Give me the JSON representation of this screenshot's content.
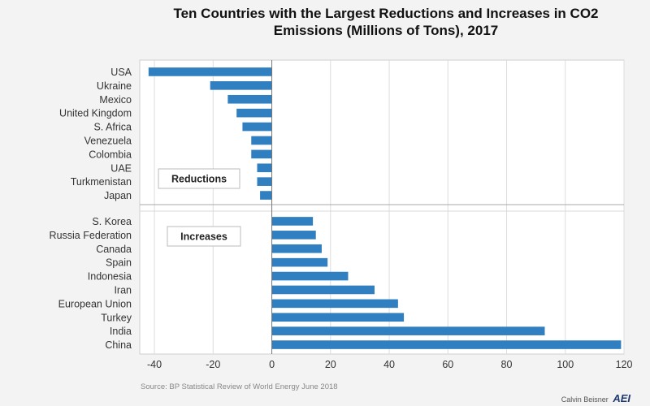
{
  "chart_data": {
    "type": "bar",
    "orientation": "horizontal",
    "title": "Ten Countries with the Largest Reductions and Increases in CO2 Emissions (Millions of Tons), 2017",
    "xlim": [
      -45,
      120
    ],
    "x_ticks": [
      -40,
      -20,
      0,
      20,
      40,
      60,
      80,
      100,
      120
    ],
    "grid": true,
    "bar_color": "#2f7fc1",
    "groups": [
      {
        "label": "Reductions",
        "categories": [
          "USA",
          "Ukraine",
          "Mexico",
          "United Kingdom",
          "S. Africa",
          "Venezuela",
          "Colombia",
          "UAE",
          "Turkmenistan",
          "Japan"
        ],
        "values": [
          -42,
          -21,
          -15,
          -12,
          -10,
          -7,
          -7,
          -5,
          -5,
          -4
        ]
      },
      {
        "label": "Increases",
        "categories": [
          "S. Korea",
          "Russia Federation",
          "Canada",
          "Spain",
          "Indonesia",
          "Iran",
          "European Union",
          "Turkey",
          "India",
          "China"
        ],
        "values": [
          14,
          15,
          17,
          19,
          26,
          35,
          43,
          45,
          93,
          119
        ]
      }
    ]
  },
  "source": "Source: BP Statistical Review of World Energy June 2018",
  "credit": {
    "text": "Calvin Beisner",
    "logo": "AEI"
  }
}
